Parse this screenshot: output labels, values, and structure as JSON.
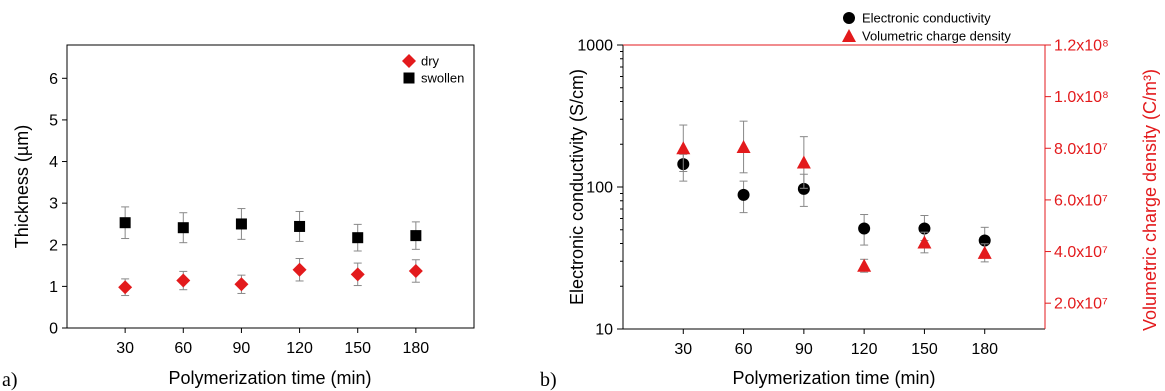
{
  "chart_data": [
    {
      "type": "scatter",
      "panel_label": "a)",
      "xlabel": "Polymerization time (min)",
      "ylabel": "Thickness (µm)",
      "x": [
        30,
        60,
        90,
        120,
        150,
        180
      ],
      "xlim": [
        0,
        210
      ],
      "ylim": [
        0,
        6.8
      ],
      "yticks": [
        0,
        1,
        2,
        3,
        4,
        5,
        6
      ],
      "legend_position": "top-right",
      "series": [
        {
          "name": "dry",
          "marker": "diamond",
          "color": "#e31a1c",
          "values": [
            0.98,
            1.14,
            1.05,
            1.4,
            1.29,
            1.37
          ],
          "errors": [
            0.2,
            0.22,
            0.22,
            0.27,
            0.27,
            0.27
          ]
        },
        {
          "name": "swollen",
          "marker": "square",
          "color": "#000000",
          "values": [
            2.53,
            2.41,
            2.5,
            2.44,
            2.17,
            2.22
          ],
          "errors": [
            0.38,
            0.36,
            0.37,
            0.36,
            0.32,
            0.33
          ]
        }
      ]
    },
    {
      "type": "scatter",
      "panel_label": "b)",
      "xlabel": "Polymerization time (min)",
      "ylabel": "Electronic conductivity (S/cm)",
      "ylabel_right": "Volumetric charge density (C/m³)",
      "x": [
        30,
        60,
        90,
        120,
        150,
        180
      ],
      "xlim": [
        0,
        210
      ],
      "ylim_left": [
        10,
        1000
      ],
      "y_scale_left": "log",
      "yticks_left": [
        "10",
        "100",
        "1000"
      ],
      "ylim_right": [
        10000000,
        120000000
      ],
      "yticks_right": [
        "2.0x10⁷",
        "4.0x10⁷",
        "6.0x10⁷",
        "8.0x10⁷",
        "1.0x10⁸",
        "1.2x10⁸"
      ],
      "legend_position": "top-center",
      "series": [
        {
          "name": "Electronic conductivity",
          "axis": "left",
          "marker": "circle",
          "color": "#000000",
          "values": [
            145,
            88,
            97,
            51,
            51,
            42
          ],
          "err_low": [
            35,
            22,
            24,
            12,
            9,
            8
          ],
          "err_high": [
            25,
            22,
            26,
            13,
            12,
            10
          ]
        },
        {
          "name": "Volumetric charge density",
          "axis": "right",
          "marker": "triangle",
          "color": "#e31a1c",
          "values": [
            80000000,
            80500000,
            74500000,
            34500000,
            43500000,
            39500000
          ],
          "errors": [
            9000000,
            10000000,
            10000000,
            2500000,
            4000000,
            3500000
          ]
        }
      ]
    }
  ]
}
